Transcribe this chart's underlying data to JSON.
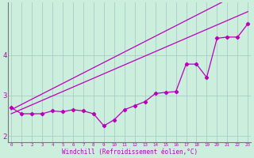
{
  "xlabel": "Windchill (Refroidissement éolien,°C)",
  "background_color": "#cceedd",
  "grid_color": "#aacccc",
  "line_color": "#bb00bb",
  "x_values": [
    0,
    1,
    2,
    3,
    4,
    5,
    6,
    7,
    8,
    9,
    10,
    11,
    12,
    13,
    14,
    15,
    16,
    17,
    18,
    19,
    20,
    21,
    22,
    23
  ],
  "line_straight1": [
    2.65,
    2.78,
    2.91,
    3.04,
    3.17,
    3.3,
    3.43,
    3.56,
    3.69,
    3.82,
    3.95,
    4.08,
    4.21,
    4.34,
    4.47,
    4.6,
    4.73,
    4.86,
    4.99,
    5.12,
    5.25,
    5.38,
    5.51,
    5.64
  ],
  "line_straight2": [
    2.55,
    2.66,
    2.77,
    2.88,
    2.99,
    3.1,
    3.21,
    3.32,
    3.43,
    3.54,
    3.65,
    3.76,
    3.87,
    3.98,
    4.09,
    4.2,
    4.31,
    4.42,
    4.53,
    4.64,
    4.75,
    4.86,
    4.97,
    5.08
  ],
  "line_data": [
    2.7,
    2.55,
    2.55,
    2.55,
    2.62,
    2.6,
    2.65,
    2.62,
    2.55,
    2.25,
    2.4,
    2.65,
    2.75,
    2.85,
    3.05,
    3.08,
    3.1,
    3.78,
    3.78,
    3.45,
    4.42,
    4.45,
    4.45,
    4.78
  ],
  "ylim": [
    1.85,
    5.3
  ],
  "yticks": [
    2,
    3,
    4
  ],
  "xlim": [
    -0.3,
    23.3
  ],
  "figsize": [
    3.2,
    2.0
  ],
  "dpi": 100
}
